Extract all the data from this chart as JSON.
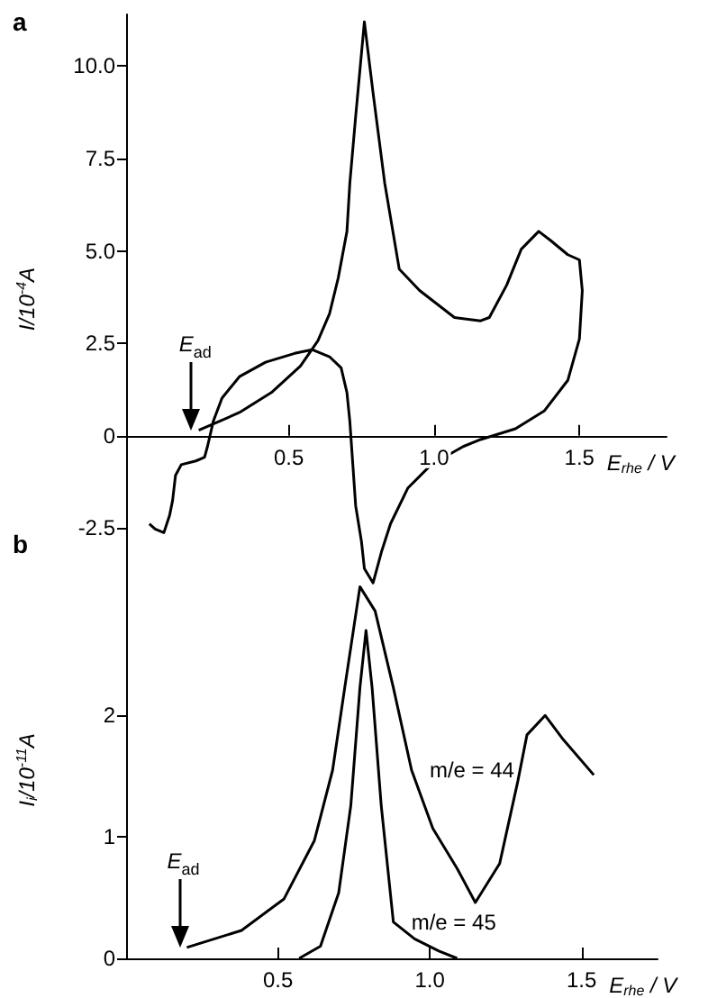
{
  "chart_data": [
    {
      "type": "line",
      "title": "a",
      "xlabel": "E$_{rhe}$ / V",
      "ylabel": "I/10$^{-4}$A",
      "xlim": [
        -0.06,
        1.8
      ],
      "ylim": [
        -4.0,
        11.4
      ],
      "xticks": [
        {
          "value": 0.5,
          "label": "0.5"
        },
        {
          "value": 1.0,
          "label": "1.0"
        },
        {
          "value": 1.5,
          "label": "1.5"
        }
      ],
      "yticks": [
        -2.5,
        {
          "value": 0,
          "label": "0"
        },
        2.5,
        {
          "value": 5,
          "label": "5.0"
        },
        7.5,
        {
          "value": 10,
          "label": "10.0"
        }
      ],
      "marker": "none",
      "line_style": "solid",
      "grid": false,
      "legend": false,
      "annotations": [
        "E$_{ad}$"
      ],
      "series": [
        {
          "color": "#000000",
          "x": [
            0.19,
            0.33,
            0.44,
            0.54,
            0.6,
            0.64,
            0.67,
            0.7,
            0.71,
            0.73,
            0.76,
            0.79,
            0.83,
            0.88,
            0.95,
            1.07,
            1.16,
            1.19,
            1.25,
            1.3,
            1.36,
            1.4,
            1.46,
            1.5,
            1.51,
            1.5,
            1.46,
            1.38,
            1.28,
            1.16,
            1.1,
            0.99,
            0.91,
            0.85,
            0.82,
            0.79,
            0.76,
            0.75,
            0.73,
            0.71,
            0.7,
            0.68,
            0.64,
            0.58,
            0.52,
            0.42,
            0.33,
            0.27,
            0.24,
            0.22,
            0.21,
            0.18,
            0.13,
            0.11,
            0.1,
            0.09,
            0.07,
            0.04,
            0.02
          ],
          "values": [
            0.15,
            0.63,
            1.17,
            1.89,
            2.57,
            3.3,
            4.27,
            5.53,
            6.84,
            8.64,
            11.2,
            9.27,
            6.84,
            4.51,
            3.93,
            3.2,
            3.11,
            3.2,
            4.08,
            5.05,
            5.53,
            5.29,
            4.9,
            4.76,
            3.93,
            2.62,
            1.5,
            0.68,
            0.19,
            -0.1,
            -0.29,
            -0.78,
            -1.41,
            -2.38,
            -3.11,
            -3.98,
            -3.59,
            -2.86,
            -1.89,
            0.39,
            1.17,
            1.84,
            2.14,
            2.33,
            2.23,
            1.99,
            1.6,
            1.02,
            0.39,
            -0.29,
            -0.58,
            -0.68,
            -0.78,
            -1.07,
            -1.75,
            -2.14,
            -2.62,
            -2.52,
            -2.38
          ]
        }
      ]
    },
    {
      "type": "line",
      "title": "b",
      "xlabel": "E$_{rhe}$ / V",
      "ylabel": "I$_{i}$/10$^{-11}$A",
      "xlim": [
        0.0,
        1.75
      ],
      "ylim": [
        0,
        3.1
      ],
      "xticks": [
        {
          "value": 0.5,
          "label": "0.5"
        },
        {
          "value": 1.0,
          "label": "1.0"
        },
        {
          "value": 1.5,
          "label": "1.5"
        }
      ],
      "yticks": [
        0,
        1,
        2
      ],
      "marker": "none",
      "line_style": "solid",
      "grid": false,
      "legend": false,
      "annotations": [
        "E$_{ad}$"
      ],
      "series": [
        {
          "name": "m/e = 44",
          "color": "#000000",
          "x": [
            0.2,
            0.38,
            0.52,
            0.62,
            0.68,
            0.72,
            0.77,
            0.82,
            0.88,
            0.94,
            1.01,
            1.09,
            1.15,
            1.23,
            1.29,
            1.32,
            1.38,
            1.44,
            1.54
          ],
          "values": [
            0.09,
            0.23,
            0.49,
            0.97,
            1.55,
            2.23,
            3.06,
            2.86,
            2.23,
            1.55,
            1.07,
            0.74,
            0.46,
            0.78,
            1.46,
            1.84,
            2.0,
            1.8,
            1.51
          ]
        },
        {
          "name": "m/e = 45",
          "color": "#000000",
          "x": [
            0.57,
            0.64,
            0.7,
            0.74,
            0.77,
            0.79,
            0.81,
            0.84,
            0.88,
            0.95,
            1.03,
            1.09
          ],
          "values": [
            0,
            0.1,
            0.54,
            1.26,
            2.23,
            2.7,
            2.23,
            1.26,
            0.3,
            0.16,
            0.06,
            0
          ]
        }
      ]
    }
  ]
}
